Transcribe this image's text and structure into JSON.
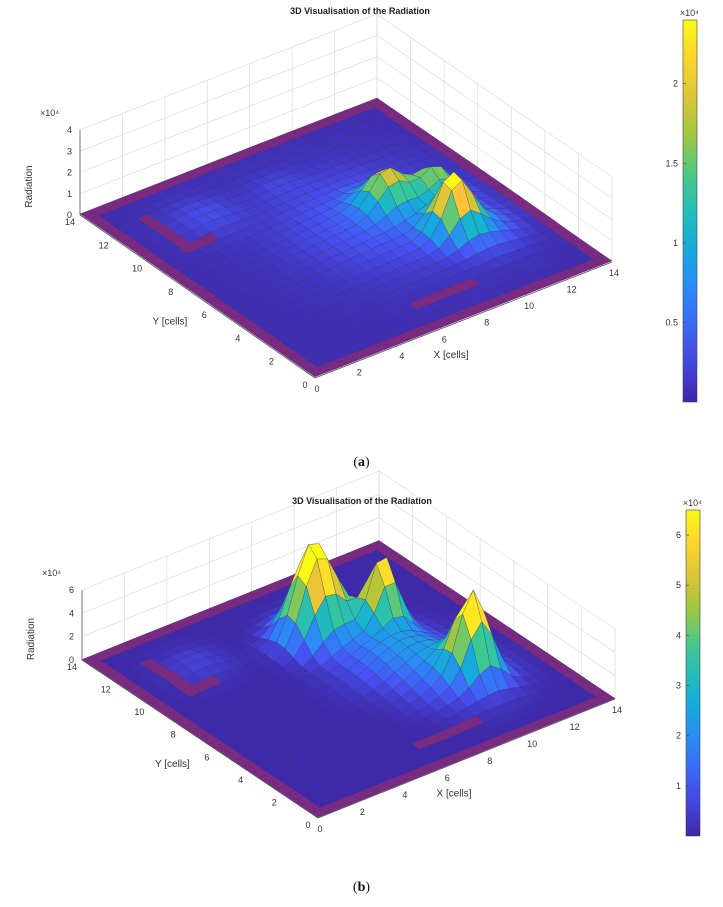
{
  "chart_data": [
    {
      "type": "surface",
      "panel_label": "a",
      "title": "3D Visualisation of the Radiation",
      "xlabel": "X [cells]",
      "ylabel": "Y [cells]",
      "zlabel": "Radiation",
      "xlim": [
        0,
        14
      ],
      "ylim": [
        0,
        14
      ],
      "zlim": [
        0,
        40000
      ],
      "x_ticks": [
        "0",
        "2",
        "4",
        "6",
        "8",
        "10",
        "12",
        "14"
      ],
      "y_ticks": [
        "0",
        "2",
        "4",
        "6",
        "8",
        "10",
        "12",
        "14"
      ],
      "z_ticks": [
        "0",
        "1",
        "2",
        "3",
        "4"
      ],
      "z_exponent": "×10⁴",
      "colorbar": {
        "ticks": [
          "0.5",
          "1",
          "1.5",
          "2"
        ],
        "exponent": "×10⁴",
        "min": 0,
        "max": 24000
      },
      "walls": [
        {
          "x": [
            3.3,
            3.7
          ],
          "y": [
            0.3,
            4
          ]
        },
        {
          "x": [
            0.3,
            3.5
          ],
          "y": [
            3.8,
            4.2
          ]
        },
        {
          "x": [
            6,
            9
          ],
          "y": [
            1.7,
            2.1
          ]
        },
        {
          "x": [
            8.8,
            9.2
          ],
          "y": [
            1.9,
            5
          ]
        },
        {
          "x": [
            5,
            7
          ],
          "y": [
            6.8,
            7.2
          ]
        },
        {
          "x": [
            1.5,
            1.9
          ],
          "y": [
            9.5,
            12.5
          ]
        },
        {
          "x": [
            1.7,
            3
          ],
          "y": [
            9.5,
            9.9
          ]
        },
        {
          "x": [
            6.5,
            9.5
          ],
          "y": [
            11.8,
            12.2
          ]
        },
        {
          "x": [
            11.5,
            13.7
          ],
          "y": [
            6.3,
            6.7
          ]
        }
      ],
      "peaks": [
        {
          "x": 3.5,
          "y": 11.0,
          "amp": 2500,
          "sigma": 1.0
        },
        {
          "x": 7.0,
          "y": 11.2,
          "amp": 1200,
          "sigma": 0.7
        },
        {
          "x": 8.5,
          "y": 7.2,
          "amp": 4000,
          "sigma": 2.5
        },
        {
          "x": 9.3,
          "y": 7.5,
          "amp": 17000,
          "sigma": 0.7
        },
        {
          "x": 11.2,
          "y": 7.0,
          "amp": 15000,
          "sigma": 0.65
        },
        {
          "x": 10.3,
          "y": 4.8,
          "amp": 23000,
          "sigma": 0.6
        },
        {
          "x": 11.0,
          "y": 4.5,
          "amp": 7000,
          "sigma": 1.0
        }
      ]
    },
    {
      "type": "surface",
      "panel_label": "b",
      "title": "3D Visualisation of the Radiation",
      "xlabel": "X [cells]",
      "ylabel": "Y [cells]",
      "zlabel": "Radiation",
      "xlim": [
        0,
        14
      ],
      "ylim": [
        0,
        14
      ],
      "zlim": [
        0,
        60000
      ],
      "x_ticks": [
        "0",
        "2",
        "4",
        "6",
        "8",
        "10",
        "12",
        "14"
      ],
      "y_ticks": [
        "0",
        "2",
        "4",
        "6",
        "8",
        "10",
        "12",
        "14"
      ],
      "z_ticks": [
        "0",
        "2",
        "4",
        "6"
      ],
      "z_exponent": "×10⁴",
      "colorbar": {
        "ticks": [
          "1",
          "2",
          "3",
          "4",
          "5",
          "6"
        ],
        "exponent": "×10⁴",
        "min": 0,
        "max": 65000
      },
      "walls": [
        {
          "x": [
            3.3,
            3.7
          ],
          "y": [
            0.3,
            4
          ]
        },
        {
          "x": [
            0.3,
            3.5
          ],
          "y": [
            3.8,
            4.2
          ]
        },
        {
          "x": [
            6,
            9
          ],
          "y": [
            1.7,
            2.1
          ]
        },
        {
          "x": [
            8.8,
            9.2
          ],
          "y": [
            1.9,
            5
          ]
        },
        {
          "x": [
            5,
            7
          ],
          "y": [
            6.8,
            7.2
          ]
        },
        {
          "x": [
            1.5,
            1.9
          ],
          "y": [
            9.5,
            12.5
          ]
        },
        {
          "x": [
            1.7,
            3
          ],
          "y": [
            9.5,
            9.9
          ]
        },
        {
          "x": [
            6.5,
            9.5
          ],
          "y": [
            11.8,
            12.2
          ]
        },
        {
          "x": [
            11.5,
            13.7
          ],
          "y": [
            6.3,
            6.7
          ]
        }
      ],
      "peaks": [
        {
          "x": 3.0,
          "y": 11.0,
          "amp": 6000,
          "sigma": 0.9
        },
        {
          "x": 7.5,
          "y": 9.8,
          "amp": 58000,
          "sigma": 0.75
        },
        {
          "x": 8.2,
          "y": 10.2,
          "amp": 35000,
          "sigma": 0.9
        },
        {
          "x": 9.8,
          "y": 8.5,
          "amp": 62000,
          "sigma": 0.55
        },
        {
          "x": 9.0,
          "y": 7.0,
          "amp": 20000,
          "sigma": 1.4
        },
        {
          "x": 10.5,
          "y": 4.0,
          "amp": 63000,
          "sigma": 0.6
        },
        {
          "x": 10.0,
          "y": 4.5,
          "amp": 18000,
          "sigma": 1.3
        }
      ]
    }
  ]
}
